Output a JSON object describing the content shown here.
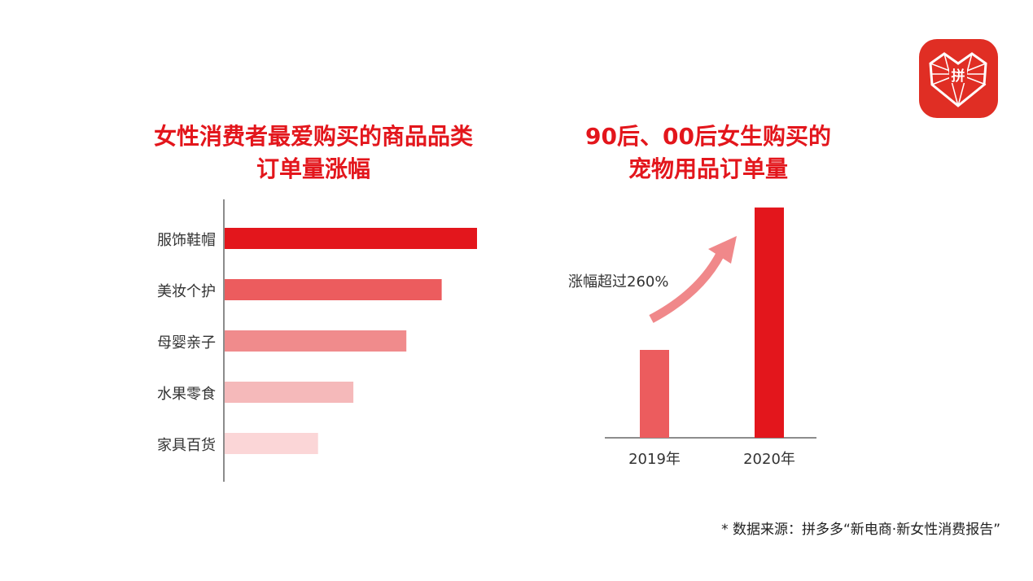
{
  "logo": {
    "text": "拼",
    "color": "#e02e24"
  },
  "chart_data": [
    {
      "type": "bar",
      "orientation": "horizontal",
      "title": "女性消费者最爱购买的商品品类订单量涨幅",
      "title_lines": [
        "女性消费者最爱购买的商品品类",
        "订单量涨幅"
      ],
      "categories": [
        "服饰鞋帽",
        "美妆个护",
        "母婴亲子",
        "水果零食",
        "家具百货"
      ],
      "values": [
        100,
        86,
        72,
        51,
        37
      ],
      "value_unit": "relative (max = 100, no numbers shown)",
      "colors": [
        "#e3161c",
        "#ec5c5e",
        "#f08b8c",
        "#f5b9ba",
        "#fbd6d7"
      ],
      "xlim": [
        0,
        100
      ]
    },
    {
      "type": "bar",
      "title": "90后、00后女生购买的宠物用品订单量",
      "title_lines": [
        "90后、00后女生购买的",
        "宠物用品订单量"
      ],
      "categories": [
        "2019年",
        "2020年"
      ],
      "values": [
        1.0,
        2.62
      ],
      "value_unit": "relative",
      "colors": [
        "#ec5c5e",
        "#e3161c"
      ],
      "annotation": "涨幅超过260%",
      "arrow_color": "#f0888a",
      "ylim": [
        0,
        2.7
      ]
    }
  ],
  "footnote": "* 数据来源：拼多多“新电商·新女性消费报告”"
}
